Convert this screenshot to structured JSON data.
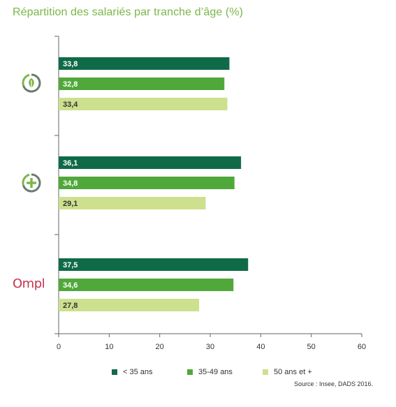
{
  "title": "Répartition des salariés par tranche d’âge (%)",
  "source": "Source : Insee, DADS 2016.",
  "colors": {
    "title": "#7ab648",
    "series": [
      "#0f6a48",
      "#50a83a",
      "#cde08e"
    ],
    "axis": "#666666",
    "ompl": "#c7334a"
  },
  "categories": [
    {
      "icon": "recycle-leaf-icon"
    },
    {
      "icon": "plus-circle-icon"
    },
    {
      "label": "Ompl"
    }
  ],
  "chart_data": {
    "type": "bar",
    "orientation": "horizontal",
    "title": "Répartition des salariés par tranche d’âge (%)",
    "xlim": [
      0,
      60
    ],
    "xticks": [
      "0",
      "10",
      "20",
      "30",
      "40",
      "50",
      "60"
    ],
    "legend_position": "bottom",
    "series": [
      {
        "name": "< 35 ans",
        "values": [
          33.8,
          36.1,
          37.5
        ],
        "labels": [
          "33,8",
          "36,1",
          "37,5"
        ],
        "color": "#0f6a48"
      },
      {
        "name": "35-49 ans",
        "values": [
          32.8,
          34.8,
          34.6
        ],
        "labels": [
          "32,8",
          "34,8",
          "34,6"
        ],
        "color": "#50a83a"
      },
      {
        "name": "50 ans et +",
        "values": [
          33.4,
          29.1,
          27.8
        ],
        "labels": [
          "33,4",
          "29,1",
          "27,8"
        ],
        "color": "#cde08e"
      }
    ]
  }
}
